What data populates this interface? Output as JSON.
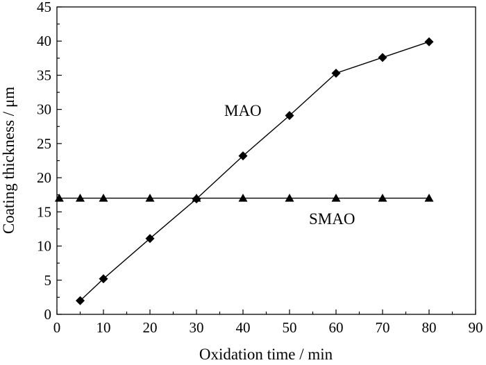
{
  "chart_data": {
    "type": "line",
    "title": "",
    "xlabel": "Oxidation time / min",
    "ylabel": "Coating thickness / μm",
    "xlim": [
      0,
      90
    ],
    "ylim": [
      0,
      45
    ],
    "xticks": [
      "0",
      "10",
      "20",
      "30",
      "40",
      "50",
      "60",
      "70",
      "80",
      "90"
    ],
    "yticks": [
      "0",
      "5",
      "10",
      "15",
      "20",
      "25",
      "30",
      "35",
      "40",
      "45"
    ],
    "grid": false,
    "legend": "none",
    "series": [
      {
        "name": "MAO",
        "marker": "diamond",
        "color": "#000000",
        "x": [
          5,
          10,
          20,
          30,
          40,
          50,
          60,
          70,
          80
        ],
        "y": [
          2,
          5.2,
          11.1,
          16.9,
          23.2,
          29.1,
          35.3,
          37.6,
          39.9
        ]
      },
      {
        "name": "SMAO",
        "marker": "triangle",
        "color": "#000000",
        "x": [
          0.5,
          5,
          10,
          20,
          30,
          40,
          50,
          60,
          70,
          80
        ],
        "y": [
          17,
          17,
          17,
          17,
          17,
          17,
          17,
          17,
          17,
          17
        ]
      }
    ]
  }
}
